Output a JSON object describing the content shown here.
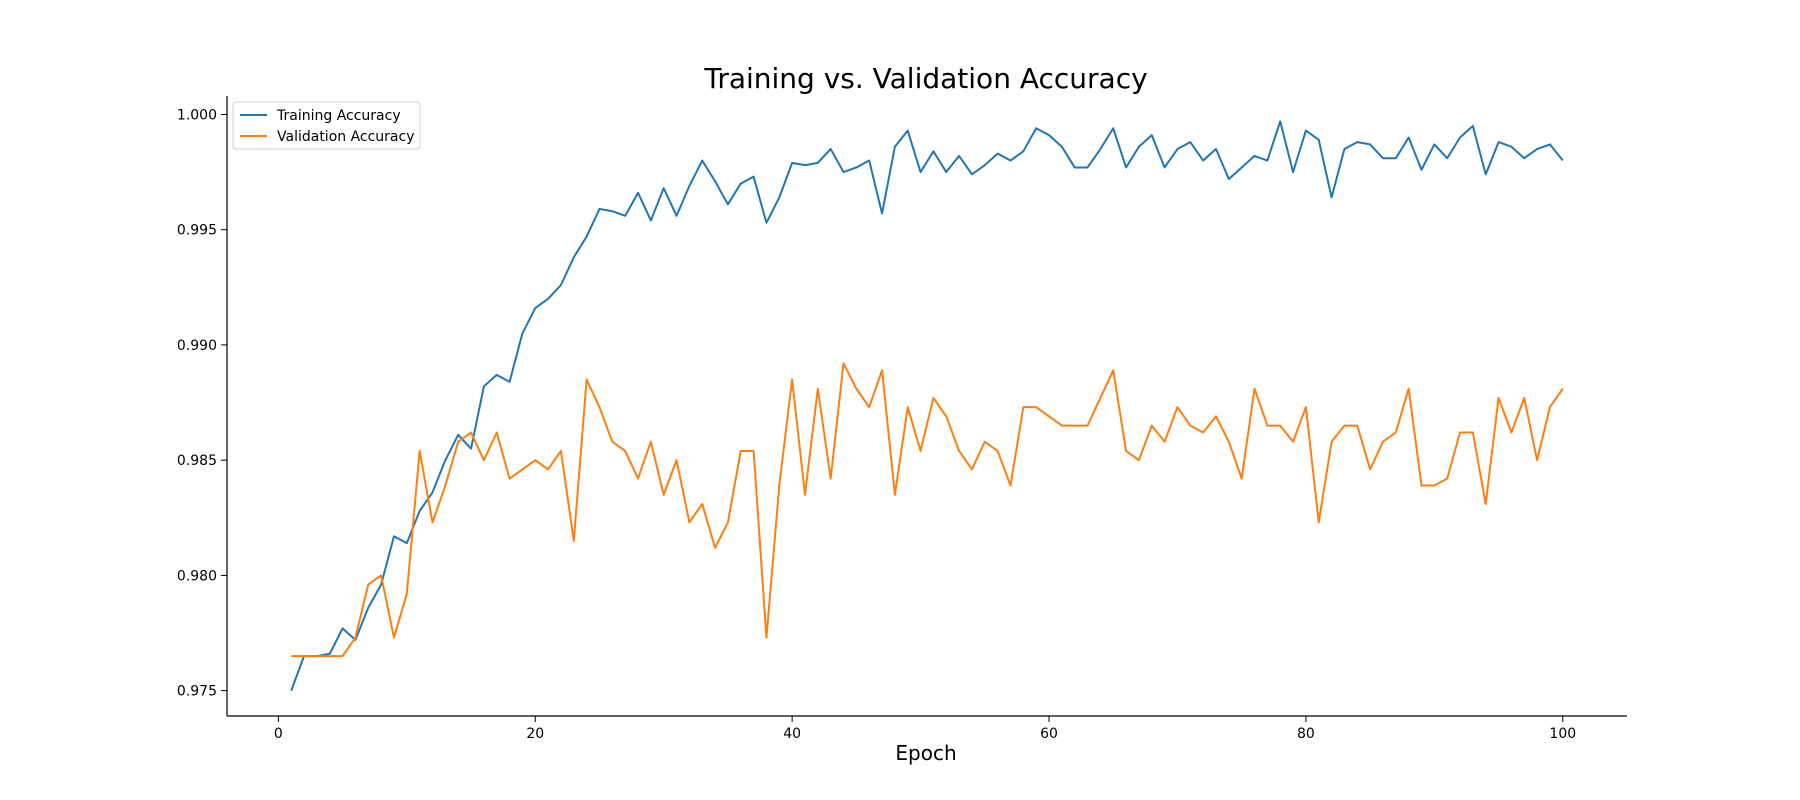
{
  "chart_data": {
    "type": "line",
    "title": "Training vs. Validation Accuracy",
    "xlabel": "Epoch",
    "ylabel": "",
    "xlim": [
      -4,
      105
    ],
    "ylim": [
      0.9739,
      1.0008
    ],
    "xticks": [
      0,
      20,
      40,
      60,
      80,
      100
    ],
    "xtick_labels": [
      "0",
      "20",
      "40",
      "60",
      "80",
      "100"
    ],
    "yticks": [
      0.975,
      0.98,
      0.985,
      0.99,
      0.995,
      1.0
    ],
    "ytick_labels": [
      "0.975",
      "0.980",
      "0.985",
      "0.990",
      "0.995",
      "1.000"
    ],
    "grid": false,
    "legend_position": "upper-left",
    "x": [
      1,
      2,
      3,
      4,
      5,
      6,
      7,
      8,
      9,
      10,
      11,
      12,
      13,
      14,
      15,
      16,
      17,
      18,
      19,
      20,
      21,
      22,
      23,
      24,
      25,
      26,
      27,
      28,
      29,
      30,
      31,
      32,
      33,
      34,
      35,
      36,
      37,
      38,
      39,
      40,
      41,
      42,
      43,
      44,
      45,
      46,
      47,
      48,
      49,
      50,
      51,
      52,
      53,
      54,
      55,
      56,
      57,
      58,
      59,
      60,
      61,
      62,
      63,
      64,
      65,
      66,
      67,
      68,
      69,
      70,
      71,
      72,
      73,
      74,
      75,
      76,
      77,
      78,
      79,
      80,
      81,
      82,
      83,
      84,
      85,
      86,
      87,
      88,
      89,
      90,
      91,
      92,
      93,
      94,
      95,
      96,
      97,
      98,
      99,
      100
    ],
    "series": [
      {
        "name": "Training Accuracy",
        "color": "#1f77b4",
        "values": [
          0.975,
          0.9765,
          0.9765,
          0.9766,
          0.9777,
          0.9772,
          0.9786,
          0.9796,
          0.9817,
          0.9814,
          0.9828,
          0.9836,
          0.985,
          0.9861,
          0.9855,
          0.9882,
          0.9887,
          0.9884,
          0.9905,
          0.9916,
          0.992,
          0.9926,
          0.9938,
          0.9947,
          0.9959,
          0.9958,
          0.9956,
          0.9966,
          0.9954,
          0.9968,
          0.9956,
          0.9969,
          0.998,
          0.9971,
          0.9961,
          0.997,
          0.9973,
          0.9953,
          0.9964,
          0.9979,
          0.9978,
          0.9979,
          0.9985,
          0.9975,
          0.9977,
          0.998,
          0.9957,
          0.9986,
          0.9993,
          0.9975,
          0.9984,
          0.9975,
          0.9982,
          0.9974,
          0.9978,
          0.9983,
          0.998,
          0.9984,
          0.9994,
          0.9991,
          0.9986,
          0.9977,
          0.9977,
          0.9985,
          0.9994,
          0.9977,
          0.9986,
          0.9991,
          0.9977,
          0.9985,
          0.9988,
          0.998,
          0.9985,
          0.9972,
          0.9977,
          0.9982,
          0.998,
          0.9997,
          0.9975,
          0.9993,
          0.9989,
          0.9964,
          0.9985,
          0.9988,
          0.9987,
          0.9981,
          0.9981,
          0.999,
          0.9976,
          0.9987,
          0.9981,
          0.999,
          0.9995,
          0.9974,
          0.9988,
          0.9986,
          0.9981,
          0.9985,
          0.9987,
          0.998
        ]
      },
      {
        "name": "Validation Accuracy",
        "color": "#ff7f0e",
        "values": [
          0.9765,
          0.9765,
          0.9765,
          0.9765,
          0.9765,
          0.9773,
          0.9796,
          0.98,
          0.9773,
          0.9792,
          0.9854,
          0.9823,
          0.9839,
          0.9858,
          0.9862,
          0.985,
          0.9862,
          0.9842,
          0.9846,
          0.985,
          0.9846,
          0.9854,
          0.9815,
          0.9885,
          0.9873,
          0.9858,
          0.9854,
          0.9842,
          0.9858,
          0.9835,
          0.985,
          0.9823,
          0.9831,
          0.9812,
          0.9823,
          0.9854,
          0.9854,
          0.9773,
          0.9839,
          0.9885,
          0.9835,
          0.9881,
          0.9842,
          0.9892,
          0.9881,
          0.9873,
          0.9889,
          0.9835,
          0.9873,
          0.9854,
          0.9877,
          0.9869,
          0.9854,
          0.9846,
          0.9858,
          0.9854,
          0.9839,
          0.9873,
          0.9873,
          0.9869,
          0.9865,
          0.9865,
          0.9865,
          0.9877,
          0.9889,
          0.9854,
          0.985,
          0.9865,
          0.9858,
          0.9873,
          0.9865,
          0.9862,
          0.9869,
          0.9858,
          0.9842,
          0.9881,
          0.9865,
          0.9865,
          0.9858,
          0.9873,
          0.9823,
          0.9858,
          0.9865,
          0.9865,
          0.9846,
          0.9858,
          0.9862,
          0.9881,
          0.9839,
          0.9839,
          0.9842,
          0.9862,
          0.9862,
          0.9831,
          0.9877,
          0.9862,
          0.9877,
          0.985,
          0.9873,
          0.9881
        ]
      }
    ]
  }
}
